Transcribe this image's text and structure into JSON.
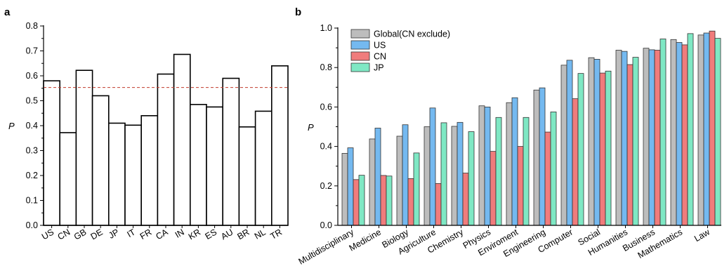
{
  "chart_data": [
    {
      "panel": "a",
      "type": "bar",
      "ylabel": "P",
      "ylim": [
        0,
        0.8
      ],
      "yticks": [
        "0.0",
        "0.1",
        "0.2",
        "0.3",
        "0.4",
        "0.5",
        "0.6",
        "0.7",
        "0.8"
      ],
      "categories": [
        "US",
        "CN",
        "GB",
        "DE",
        "JP",
        "IT",
        "FR",
        "CA",
        "IN",
        "KR",
        "ES",
        "AU",
        "BR",
        "NL",
        "TR"
      ],
      "values": [
        0.58,
        0.372,
        0.622,
        0.52,
        0.41,
        0.402,
        0.44,
        0.607,
        0.686,
        0.485,
        0.475,
        0.59,
        0.395,
        0.458,
        0.64
      ],
      "reference_line": 0.553,
      "reference_color": "#c0392b",
      "grid": false
    },
    {
      "panel": "b",
      "type": "bar",
      "ylabel": "P",
      "ylim": [
        0,
        1.0
      ],
      "yticks": [
        "0.0",
        "0.2",
        "0.4",
        "0.6",
        "0.8",
        "1.0"
      ],
      "categories": [
        "Multidisciplinary",
        "Medicine",
        "Biology",
        "Agriculture",
        "Chemistry",
        "Physics",
        "Enviroment",
        "Engineering",
        "Computer",
        "Social",
        "Humanities",
        "Business",
        "Mathematics",
        "Law"
      ],
      "legend_position": "top-left",
      "grid": false,
      "series": [
        {
          "name": "Global(CN exclude)",
          "color": "#bdbdbd",
          "values": [
            0.365,
            0.438,
            0.452,
            0.5,
            0.502,
            0.606,
            0.622,
            0.686,
            0.812,
            0.85,
            0.888,
            0.898,
            0.942,
            0.965
          ]
        },
        {
          "name": "US",
          "color": "#74b9f0",
          "values": [
            0.393,
            0.493,
            0.51,
            0.595,
            0.522,
            0.6,
            0.647,
            0.697,
            0.837,
            0.842,
            0.882,
            0.89,
            0.927,
            0.975
          ]
        },
        {
          "name": "CN",
          "color": "#f07c7c",
          "values": [
            0.232,
            0.253,
            0.237,
            0.212,
            0.265,
            0.375,
            0.4,
            0.473,
            0.642,
            0.772,
            0.815,
            0.888,
            0.915,
            0.985
          ]
        },
        {
          "name": "JP",
          "color": "#7fe8c4",
          "values": [
            0.254,
            0.25,
            0.367,
            0.52,
            0.475,
            0.547,
            0.547,
            0.575,
            0.77,
            0.782,
            0.852,
            0.945,
            0.972,
            0.948
          ]
        }
      ]
    }
  ]
}
